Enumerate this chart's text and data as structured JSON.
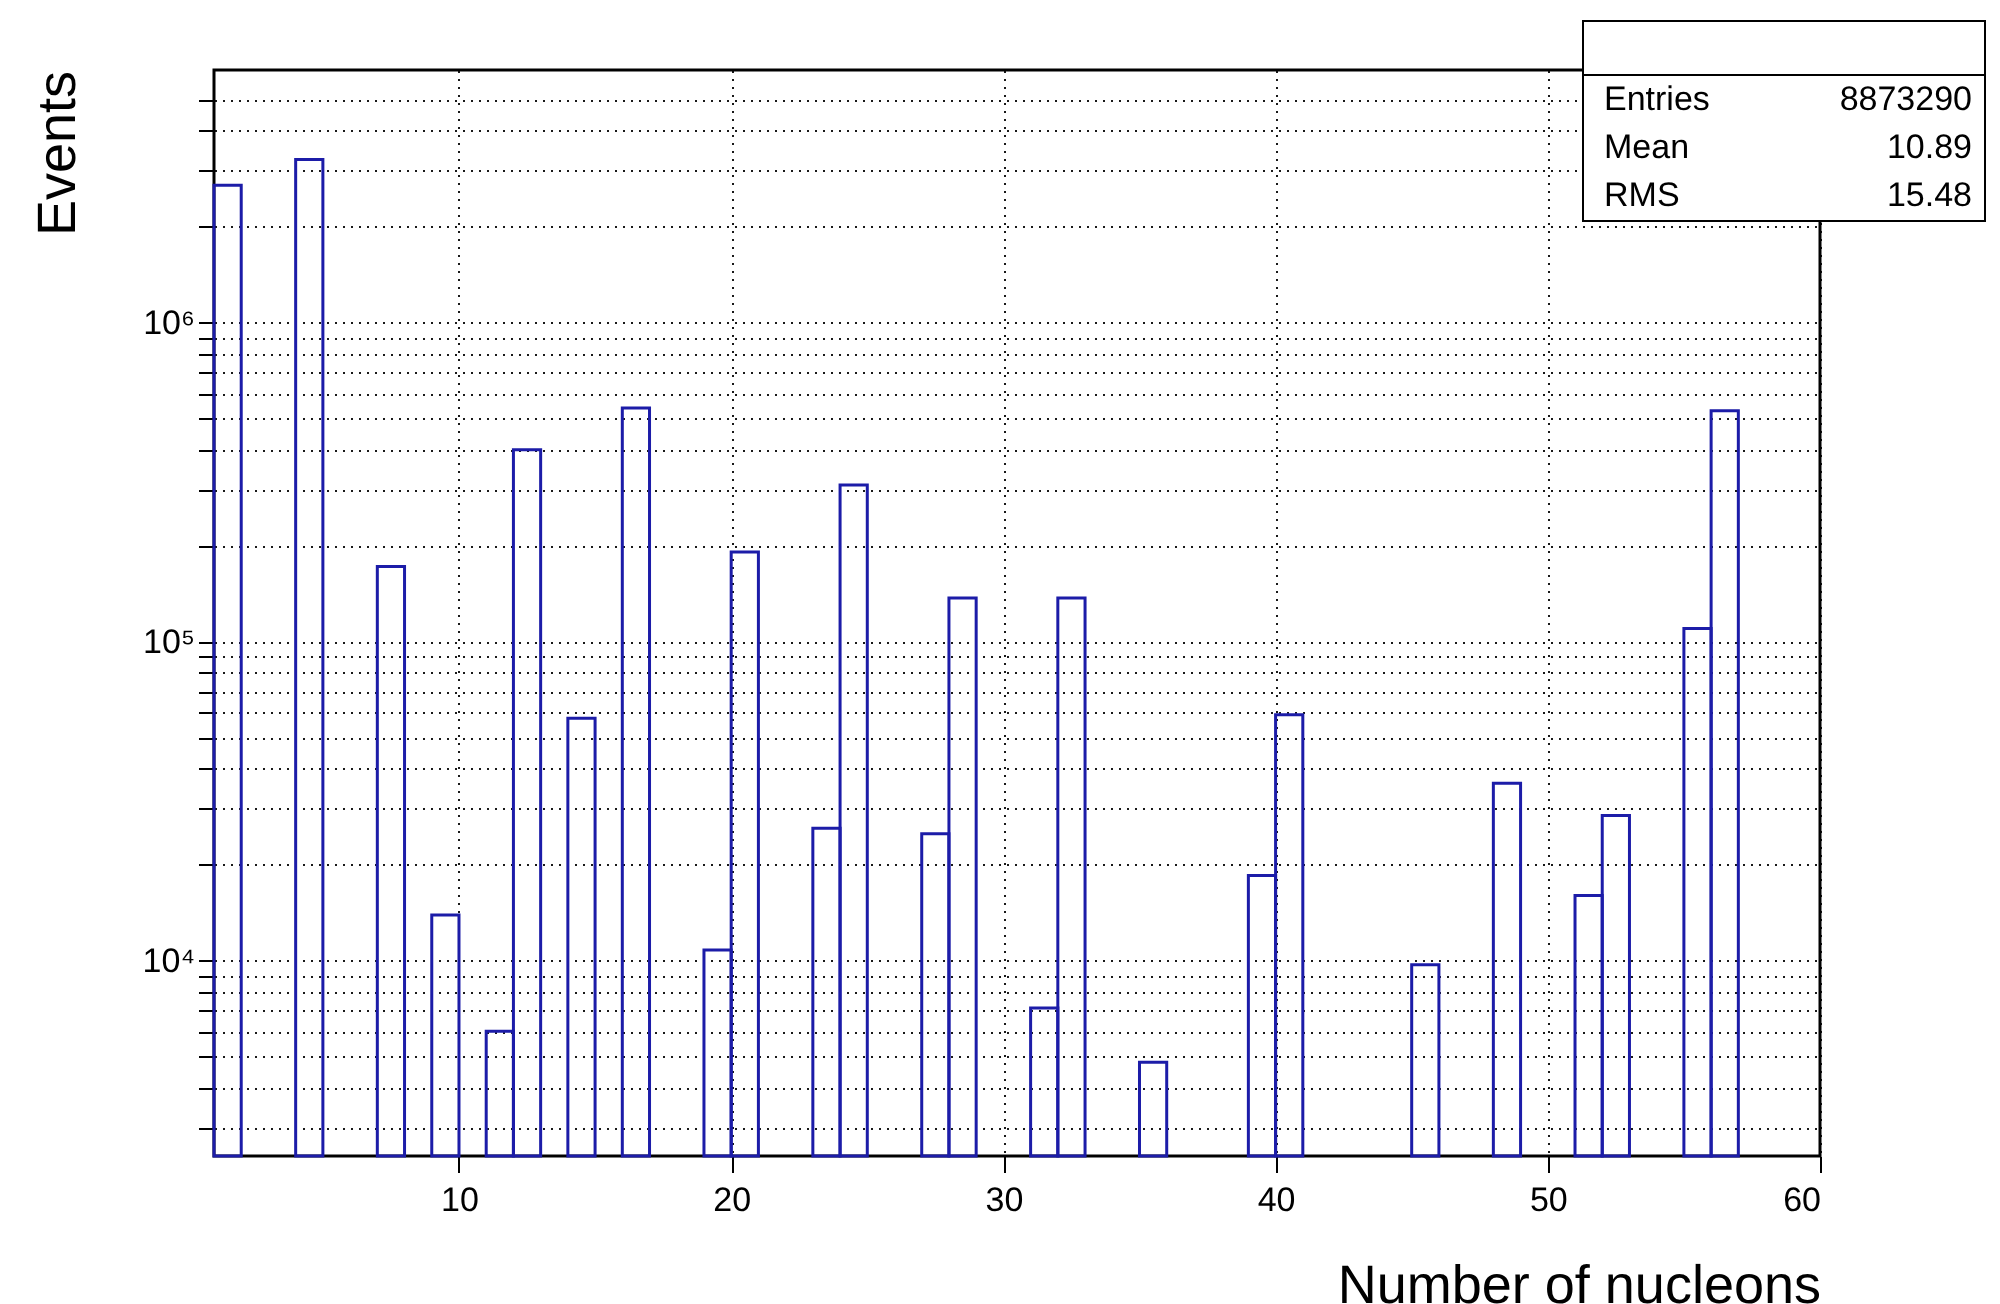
{
  "chart_data": {
    "type": "histogram",
    "xlabel": "Number of nucleons",
    "ylabel": "Events",
    "color": "#1c1ca8",
    "bins": [
      1,
      2,
      3,
      4,
      5,
      6,
      7,
      8,
      9,
      10,
      11,
      12,
      13,
      14,
      15,
      16,
      17,
      18,
      19,
      20,
      21,
      22,
      23,
      24,
      25,
      26,
      27,
      28,
      29,
      30,
      31,
      32,
      33,
      34,
      35,
      36,
      37,
      38,
      39,
      40,
      41,
      42,
      43,
      44,
      45,
      46,
      47,
      48,
      49,
      50,
      51,
      52,
      53,
      54,
      55,
      56,
      57,
      58,
      59,
      60
    ],
    "values": [
      2700000,
      null,
      null,
      3250000,
      null,
      null,
      172000,
      null,
      13900,
      null,
      6000,
      400000,
      null,
      57500,
      null,
      540000,
      null,
      null,
      10800,
      191000,
      null,
      null,
      26000,
      310000,
      null,
      null,
      25000,
      137000,
      null,
      null,
      7100,
      137000,
      null,
      null,
      4800,
      null,
      null,
      null,
      18500,
      59000,
      null,
      null,
      null,
      null,
      9700,
      null,
      null,
      36000,
      null,
      null,
      16000,
      28500,
      null,
      null,
      110000,
      530000,
      null,
      null,
      null
    ],
    "xlim": [
      1,
      60
    ],
    "xticks": [
      10,
      20,
      30,
      40,
      50,
      60
    ],
    "ylim": [
      2440,
      6200000
    ],
    "yticks": [
      {
        "value": 3000,
        "label": null
      },
      {
        "value": 4000,
        "label": null
      },
      {
        "value": 5000,
        "label": null
      },
      {
        "value": 6000,
        "label": null
      },
      {
        "value": 7000,
        "label": null
      },
      {
        "value": 8000,
        "label": null
      },
      {
        "value": 9000,
        "label": null
      },
      {
        "value": 10000,
        "label": "10⁴"
      },
      {
        "value": 20000,
        "label": null
      },
      {
        "value": 30000,
        "label": null
      },
      {
        "value": 40000,
        "label": null
      },
      {
        "value": 50000,
        "label": null
      },
      {
        "value": 60000,
        "label": null
      },
      {
        "value": 70000,
        "label": null
      },
      {
        "value": 80000,
        "label": null
      },
      {
        "value": 90000,
        "label": null
      },
      {
        "value": 100000,
        "label": "10⁵"
      },
      {
        "value": 200000,
        "label": null
      },
      {
        "value": 300000,
        "label": null
      },
      {
        "value": 400000,
        "label": null
      },
      {
        "value": 500000,
        "label": null
      },
      {
        "value": 600000,
        "label": null
      },
      {
        "value": 700000,
        "label": null
      },
      {
        "value": 800000,
        "label": null
      },
      {
        "value": 900000,
        "label": null
      },
      {
        "value": 1000000,
        "label": "10⁶"
      },
      {
        "value": 2000000,
        "label": null
      },
      {
        "value": 3000000,
        "label": null
      },
      {
        "value": 4000000,
        "label": null
      },
      {
        "value": 5000000,
        "label": null
      }
    ],
    "log": true,
    "grid": true,
    "annotations": [
      "Entries",
      "8873290",
      "Mean",
      "10.89",
      "RMS",
      "15.48"
    ]
  }
}
